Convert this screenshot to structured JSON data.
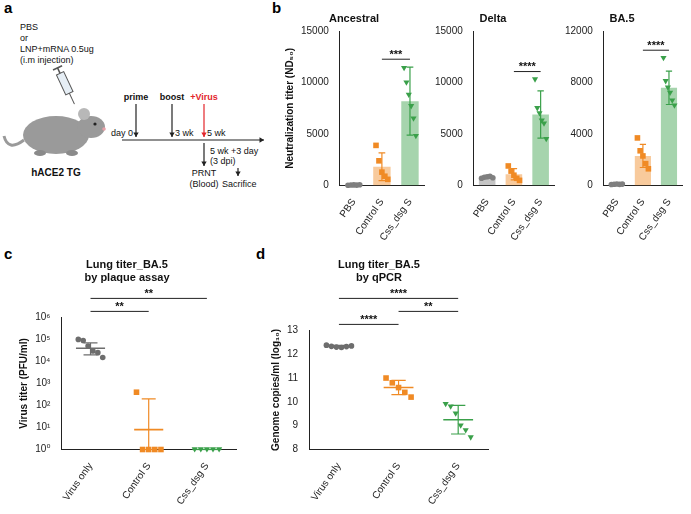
{
  "panel_labels": [
    "a",
    "b",
    "c",
    "d"
  ],
  "diagram": {
    "injection": [
      "PBS",
      "or",
      "LNP+mRNA 0.5ug",
      "(i.m injection)"
    ],
    "mouse": "hACE2 TG",
    "timeline": [
      {
        "event": "prime",
        "time": "day 0"
      },
      {
        "event": "boost",
        "time": "3 wk"
      },
      {
        "event": "+Virus",
        "time": "5 wk",
        "color": "#e3262b",
        "below": [
          "PRNT",
          "(Blood)"
        ]
      },
      {
        "time": "5 wk +3 day",
        "note": "(3 dpi)",
        "event": "Sacrifice"
      }
    ]
  },
  "chart_data": [
    {
      "type": "bar",
      "title": "Ancestral",
      "y_label": "Neutralization titer (ND₅₀)",
      "categories": [
        "PBS",
        "Control S",
        "Css_dsg S"
      ],
      "values": [
        50,
        1820,
        8200
      ],
      "errors": [
        20,
        1350,
        3300
      ],
      "colors": [
        "#7f7f7f",
        "#f08a24",
        "#3aa04a"
      ],
      "points": [
        {
          "marker": "circle",
          "values": [
            30,
            50,
            60,
            40,
            70
          ]
        },
        {
          "marker": "square",
          "values": [
            3900,
            2400,
            1300,
            900,
            600
          ]
        },
        {
          "marker": "triangle",
          "values": [
            11400,
            10000,
            8800,
            7700,
            6500,
            4800
          ]
        }
      ],
      "ylim": [
        0,
        15000
      ],
      "yticks": [
        0,
        5000,
        10000,
        15000
      ],
      "grid": false,
      "annotations": [
        {
          "from": "Control S",
          "to": "Css_dsg S",
          "text": "***"
        }
      ]
    },
    {
      "type": "bar",
      "title": "Delta",
      "categories": [
        "PBS",
        "Control S",
        "Css_dsg S"
      ],
      "values": [
        800,
        1100,
        6900
      ],
      "errors": [
        80,
        550,
        2300
      ],
      "colors": [
        "#7f7f7f",
        "#f08a24",
        "#3aa04a"
      ],
      "points": [
        {
          "marker": "circle",
          "values": [
            700,
            800,
            850,
            900,
            750
          ]
        },
        {
          "marker": "square",
          "values": [
            1900,
            1400,
            1000,
            700,
            500
          ]
        },
        {
          "marker": "triangle",
          "values": [
            10300,
            7500,
            7000,
            6300,
            6000,
            4500
          ]
        }
      ],
      "ylim": [
        0,
        15000
      ],
      "yticks": [
        0,
        5000,
        10000,
        15000
      ],
      "grid": false,
      "annotations": [
        {
          "from": "Control S",
          "to": "Css_dsg S",
          "text": "****"
        }
      ]
    },
    {
      "type": "bar",
      "title": "BA.5",
      "categories": [
        "PBS",
        "Control S",
        "Css_dsg S"
      ],
      "values": [
        100,
        2300,
        7600
      ],
      "errors": [
        30,
        900,
        1300
      ],
      "colors": [
        "#7f7f7f",
        "#f08a24",
        "#3aa04a"
      ],
      "points": [
        {
          "marker": "circle",
          "values": [
            80,
            100,
            120,
            90,
            110
          ]
        },
        {
          "marker": "square",
          "values": [
            3700,
            2700,
            2300,
            1700,
            1300
          ]
        },
        {
          "marker": "triangle",
          "values": [
            9900,
            8100,
            7600,
            7200,
            6600,
            6200
          ]
        }
      ],
      "ylim": [
        0,
        12000
      ],
      "yticks": [
        0,
        4000,
        8000,
        12000
      ],
      "grid": false,
      "annotations": [
        {
          "from": "Control S",
          "to": "Css_dsg S",
          "text": "****"
        }
      ]
    },
    {
      "type": "scatter",
      "title": [
        "Lung titer_BA.5",
        "by plaque assay"
      ],
      "y_label": "Virus titer (PFU/ml)",
      "categories": [
        "Virus only",
        "Control S",
        "Css_dsg S"
      ],
      "values": [
        40000,
        8,
        1
      ],
      "error_low": [
        20000,
        1,
        1
      ],
      "error_high": [
        70000,
        200,
        1
      ],
      "colors": [
        "#6d6d6d",
        "#f08a24",
        "#3aa04a"
      ],
      "points": [
        {
          "marker": "circle",
          "values": [
            100000,
            90000,
            50000,
            30000,
            25000,
            15000
          ]
        },
        {
          "marker": "square",
          "values": [
            400,
            1,
            1,
            1,
            1
          ]
        },
        {
          "marker": "triangle",
          "values": [
            1,
            1,
            1,
            1,
            1
          ]
        }
      ],
      "log": "y",
      "ylim": [
        1,
        1000000
      ],
      "yticks": [
        {
          "value": 1,
          "label": "10⁰"
        },
        {
          "value": 10,
          "label": "10¹"
        },
        {
          "value": 100,
          "label": "10²"
        },
        {
          "value": 1000,
          "label": "10³"
        },
        {
          "value": 10000,
          "label": "10⁴"
        },
        {
          "value": 100000,
          "label": "10⁵"
        },
        {
          "value": 1000000,
          "label": "10⁶"
        }
      ],
      "grid": false,
      "annotations": [
        {
          "from": "Virus only",
          "to": "Control S",
          "text": "**"
        },
        {
          "from": "Virus only",
          "to": "Css_dsg S",
          "text": "**"
        }
      ]
    },
    {
      "type": "scatter",
      "title": [
        "Lung titer_BA.5",
        "by qPCR"
      ],
      "y_label": "Genome copies/ml (log₁₀)",
      "categories": [
        "Virus only",
        "Control S",
        "Css_dsg S"
      ],
      "values": [
        12.33,
        10.6,
        9.25
      ],
      "errors": [
        0.04,
        0.3,
        0.6
      ],
      "colors": [
        "#6d6d6d",
        "#f08a24",
        "#3aa04a"
      ],
      "points": [
        {
          "marker": "circle",
          "values": [
            12.38,
            12.33,
            12.3,
            12.28,
            12.32,
            12.35
          ]
        },
        {
          "marker": "square",
          "values": [
            11.0,
            10.8,
            10.6,
            10.4,
            10.2
          ]
        },
        {
          "marker": "triangle",
          "values": [
            9.9,
            9.8,
            9.5,
            9.0,
            8.8,
            8.5
          ]
        }
      ],
      "ylim": [
        8,
        13
      ],
      "yticks": [
        8,
        9,
        10,
        11,
        12,
        13
      ],
      "grid": false,
      "annotations": [
        {
          "from": "Virus only",
          "to": "Control S",
          "text": "****"
        },
        {
          "from": "Control S",
          "to": "Css_dsg S",
          "text": "**"
        },
        {
          "from": "Virus only",
          "to": "Css_dsg S",
          "text": "****"
        }
      ]
    }
  ]
}
